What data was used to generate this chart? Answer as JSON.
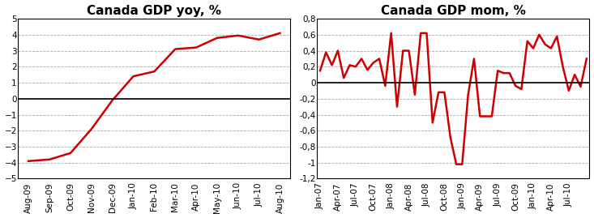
{
  "yoy_labels": [
    "Aug-09",
    "Sep-09",
    "Oct-09",
    "Nov-09",
    "Dec-09",
    "Jan-10",
    "Feb-10",
    "Mar-10",
    "Apr-10",
    "May-10",
    "Jun-10",
    "Jul-10",
    "Aug-10"
  ],
  "yoy_values": [
    -3.9,
    -3.8,
    -3.4,
    -1.9,
    -0.1,
    1.4,
    1.7,
    3.1,
    3.2,
    3.8,
    3.95,
    3.7,
    4.1
  ],
  "yoy_title": "Canada GDP yoy, %",
  "yoy_ylim": [
    -5,
    5
  ],
  "yoy_yticks": [
    -5,
    -4,
    -3,
    -2,
    -1,
    0,
    1,
    2,
    3,
    4,
    5
  ],
  "mom_title": "Canada GDP mom, %",
  "mom_ylim": [
    -1.2,
    0.8
  ],
  "mom_yticks": [
    -1.2,
    -1.0,
    -0.8,
    -0.6,
    -0.4,
    -0.2,
    0.0,
    0.2,
    0.4,
    0.6,
    0.8
  ],
  "mom_quarterly": [
    "Jan-07",
    "Apr-07",
    "Jul-07",
    "Oct-07",
    "Jan-08",
    "Apr-08",
    "Jul-08",
    "Oct-08",
    "Jan-09",
    "Apr-09",
    "Jul-09",
    "Oct-09",
    "Jan-10",
    "Apr-10",
    "Jul-10"
  ],
  "line_color": "#CC0000",
  "line_width": 1.8,
  "background_color": "#FFFFFF",
  "plot_bg_color": "#FFFFFF",
  "grid_color": "#AAAAAA",
  "title_fontsize": 11,
  "tick_label_color": "#000000",
  "tick_fontsize": 7.5
}
